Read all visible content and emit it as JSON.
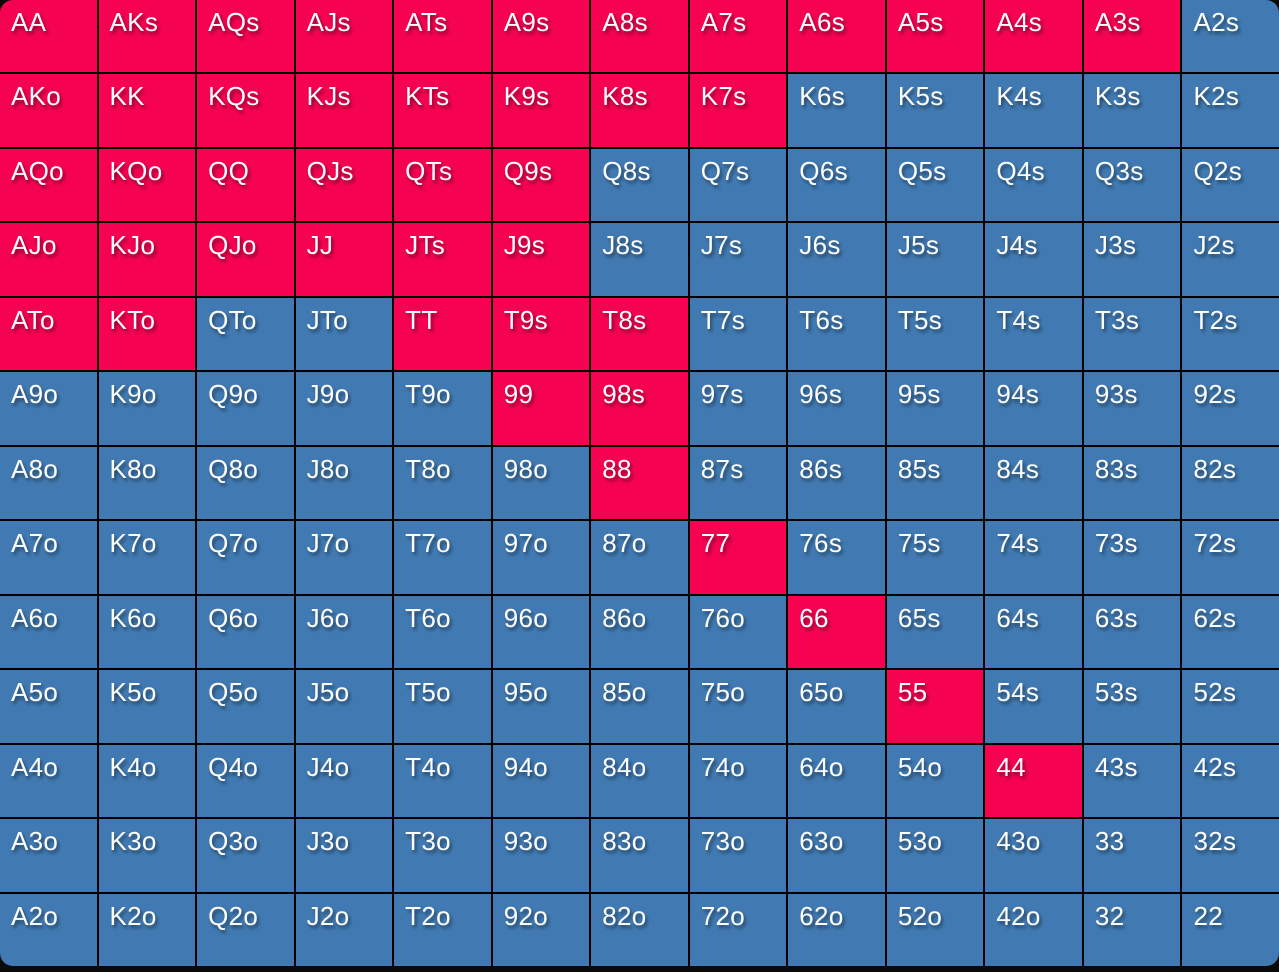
{
  "chart_data": {
    "type": "heatmap",
    "grid": {
      "rows": 13,
      "cols": 13
    },
    "colors": {
      "raise": "#F50350",
      "fold": "#417AB2",
      "grid_line": "#000000",
      "page_background": "#0A0A0A",
      "text": "#FFFFFF"
    },
    "labels": [
      [
        "AA",
        "AKs",
        "AQs",
        "AJs",
        "ATs",
        "A9s",
        "A8s",
        "A7s",
        "A6s",
        "A5s",
        "A4s",
        "A3s",
        "A2s"
      ],
      [
        "AKo",
        "KK",
        "KQs",
        "KJs",
        "KTs",
        "K9s",
        "K8s",
        "K7s",
        "K6s",
        "K5s",
        "K4s",
        "K3s",
        "K2s"
      ],
      [
        "AQo",
        "KQo",
        "QQ",
        "QJs",
        "QTs",
        "Q9s",
        "Q8s",
        "Q7s",
        "Q6s",
        "Q5s",
        "Q4s",
        "Q3s",
        "Q2s"
      ],
      [
        "AJo",
        "KJo",
        "QJo",
        "JJ",
        "JTs",
        "J9s",
        "J8s",
        "J7s",
        "J6s",
        "J5s",
        "J4s",
        "J3s",
        "J2s"
      ],
      [
        "ATo",
        "KTo",
        "QTo",
        "JTo",
        "TT",
        "T9s",
        "T8s",
        "T7s",
        "T6s",
        "T5s",
        "T4s",
        "T3s",
        "T2s"
      ],
      [
        "A9o",
        "K9o",
        "Q9o",
        "J9o",
        "T9o",
        "99",
        "98s",
        "97s",
        "96s",
        "95s",
        "94s",
        "93s",
        "92s"
      ],
      [
        "A8o",
        "K8o",
        "Q8o",
        "J8o",
        "T8o",
        "98o",
        "88",
        "87s",
        "86s",
        "85s",
        "84s",
        "83s",
        "82s"
      ],
      [
        "A7o",
        "K7o",
        "Q7o",
        "J7o",
        "T7o",
        "97o",
        "87o",
        "77",
        "76s",
        "75s",
        "74s",
        "73s",
        "72s"
      ],
      [
        "A6o",
        "K6o",
        "Q6o",
        "J6o",
        "T6o",
        "96o",
        "86o",
        "76o",
        "66",
        "65s",
        "64s",
        "63s",
        "62s"
      ],
      [
        "A5o",
        "K5o",
        "Q5o",
        "J5o",
        "T5o",
        "95o",
        "85o",
        "75o",
        "65o",
        "55",
        "54s",
        "53s",
        "52s"
      ],
      [
        "A4o",
        "K4o",
        "Q4o",
        "J4o",
        "T4o",
        "94o",
        "84o",
        "74o",
        "64o",
        "54o",
        "44",
        "43s",
        "42s"
      ],
      [
        "A3o",
        "K3o",
        "Q3o",
        "J3o",
        "T3o",
        "93o",
        "83o",
        "73o",
        "63o",
        "53o",
        "43o",
        "33",
        "32s"
      ],
      [
        "A2o",
        "K2o",
        "Q2o",
        "J2o",
        "T2o",
        "92o",
        "82o",
        "72o",
        "62o",
        "52o",
        "42o",
        "32",
        "22"
      ]
    ],
    "actions": [
      "rrrrrrrrrrrrf",
      "rrrrrrrrfffff",
      "rrrrrrfffffff",
      "rrrrrrfffffff",
      "rrffrrrffffff",
      "fffffrrffffff",
      "ffffffrffffff",
      "fffffffrfffff",
      "ffffffffrffff",
      "fffffffffrfff",
      "ffffffffffrff",
      "fffffffffffff",
      "fffffffffffff"
    ]
  }
}
